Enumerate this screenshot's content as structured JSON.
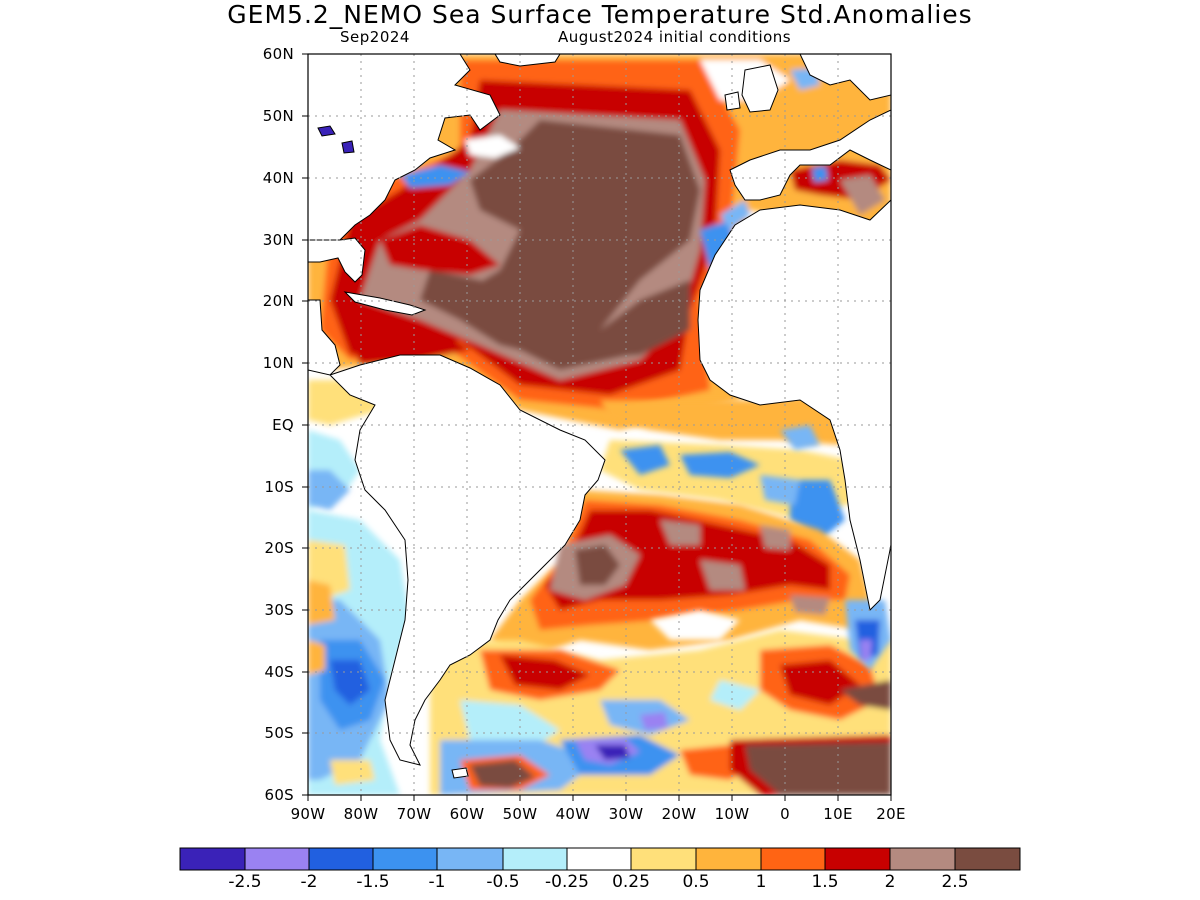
{
  "title": "GEM5.2_NEMO Sea Surface Temperature Std.Anomalies",
  "subtitle_left": "Sep2024",
  "subtitle_right": "August2024 initial conditions",
  "lat_labels": [
    "60N",
    "50N",
    "40N",
    "30N",
    "20N",
    "10N",
    "EQ",
    "10S",
    "20S",
    "30S",
    "40S",
    "50S",
    "60S"
  ],
  "lon_labels": [
    "90W",
    "80W",
    "70W",
    "60W",
    "50W",
    "40W",
    "30W",
    "20W",
    "10W",
    "0",
    "10E",
    "20E"
  ],
  "map": {
    "lon_range": [
      -90,
      20
    ],
    "lat_range": [
      -60,
      60
    ],
    "gridlines": "dotted"
  },
  "colorbar": {
    "colors": [
      "#3a22b8",
      "#9a82f2",
      "#2160e0",
      "#3c92f0",
      "#78b6f5",
      "#b4eefa",
      "#ffffff",
      "#ffe07a",
      "#ffb43c",
      "#ff6414",
      "#c80000",
      "#b48a80",
      "#7a4c40"
    ],
    "labels": [
      "-2.5",
      "-2",
      "-1.5",
      "-1",
      "-0.5",
      "-0.25",
      "0.25",
      "0.5",
      "1",
      "1.5",
      "2",
      "2.5"
    ]
  }
}
